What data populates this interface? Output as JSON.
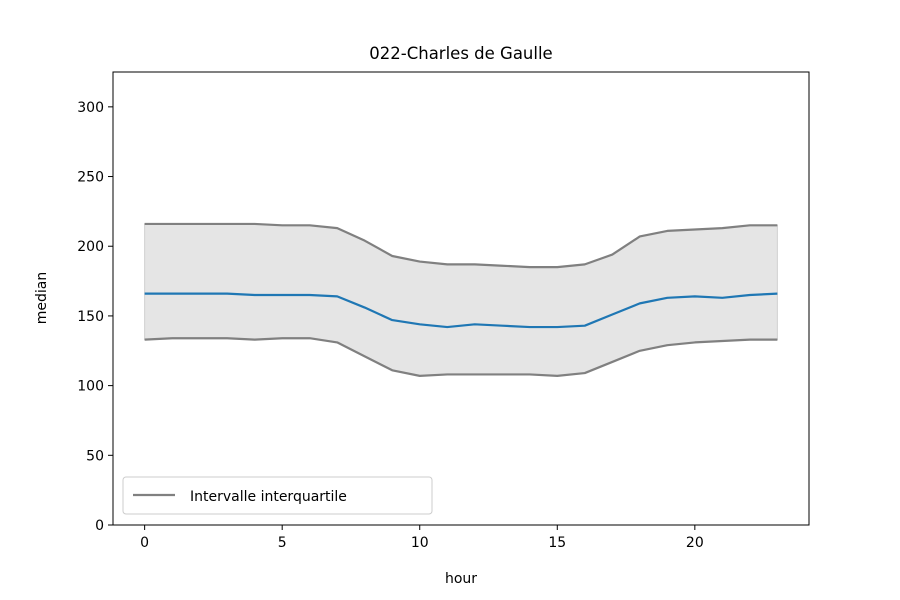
{
  "chart_data": {
    "type": "line",
    "title": "022-Charles de Gaulle",
    "xlabel": "hour",
    "ylabel": "median",
    "xlim": [
      -1.15,
      24.15
    ],
    "ylim": [
      0,
      325
    ],
    "xticks": [
      0,
      5,
      10,
      15,
      20
    ],
    "yticks": [
      0,
      50,
      100,
      150,
      200,
      250,
      300
    ],
    "grid": false,
    "legend": {
      "position": "lower-left",
      "entries": [
        "Intervalle interquartile"
      ]
    },
    "x": [
      0,
      1,
      2,
      3,
      4,
      5,
      6,
      7,
      8,
      9,
      10,
      11,
      12,
      13,
      14,
      15,
      16,
      17,
      18,
      19,
      20,
      21,
      22,
      23
    ],
    "series": [
      {
        "role": "median",
        "color": "#1f77b4",
        "values": [
          166,
          166,
          166,
          166,
          165,
          165,
          165,
          164,
          156,
          147,
          144,
          142,
          144,
          143,
          142,
          142,
          143,
          151,
          159,
          163,
          164,
          163,
          165,
          166
        ]
      },
      {
        "role": "upper-quartile",
        "name": "Intervalle interquartile",
        "color": "#808080",
        "values": [
          216,
          216,
          216,
          216,
          216,
          215,
          215,
          213,
          204,
          193,
          189,
          187,
          187,
          186,
          185,
          185,
          187,
          194,
          207,
          211,
          212,
          213,
          215,
          215
        ]
      },
      {
        "role": "lower-quartile",
        "color": "#808080",
        "values": [
          133,
          134,
          134,
          134,
          133,
          134,
          134,
          131,
          121,
          111,
          107,
          108,
          108,
          108,
          108,
          107,
          109,
          117,
          125,
          129,
          131,
          132,
          133,
          133
        ]
      }
    ],
    "band_fill": "#e5e5e5"
  }
}
